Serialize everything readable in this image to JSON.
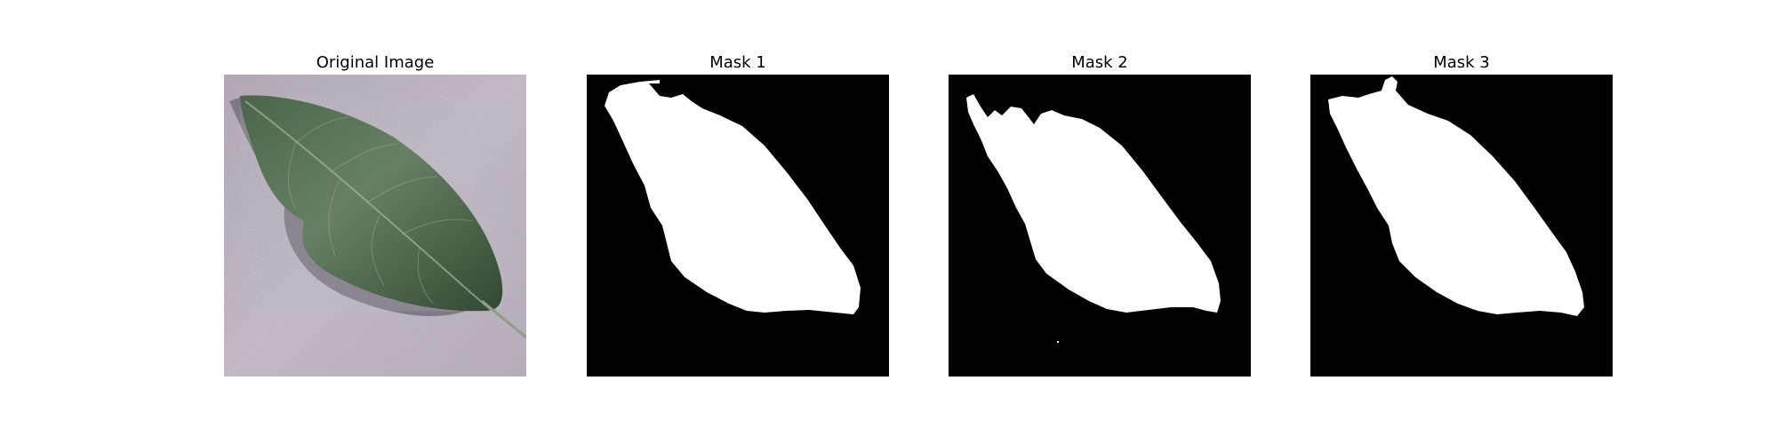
{
  "figure": {
    "background_color": "#ffffff",
    "panels": [
      {
        "title": "Original Image",
        "kind": "photo",
        "subject": "leaf-photo",
        "colors": {
          "background": "#c3bac7",
          "leaf_dark": "#314a33",
          "leaf_mid": "#4f6b4f",
          "leaf_light": "#6f8a6c",
          "shadow": "#7b7280"
        }
      },
      {
        "title": "Mask 1",
        "kind": "mask",
        "colors": {
          "background": "#000000",
          "foreground": "#ffffff"
        }
      },
      {
        "title": "Mask 2",
        "kind": "mask",
        "colors": {
          "background": "#000000",
          "foreground": "#ffffff"
        }
      },
      {
        "title": "Mask 3",
        "kind": "mask",
        "colors": {
          "background": "#000000",
          "foreground": "#ffffff"
        }
      }
    ]
  }
}
